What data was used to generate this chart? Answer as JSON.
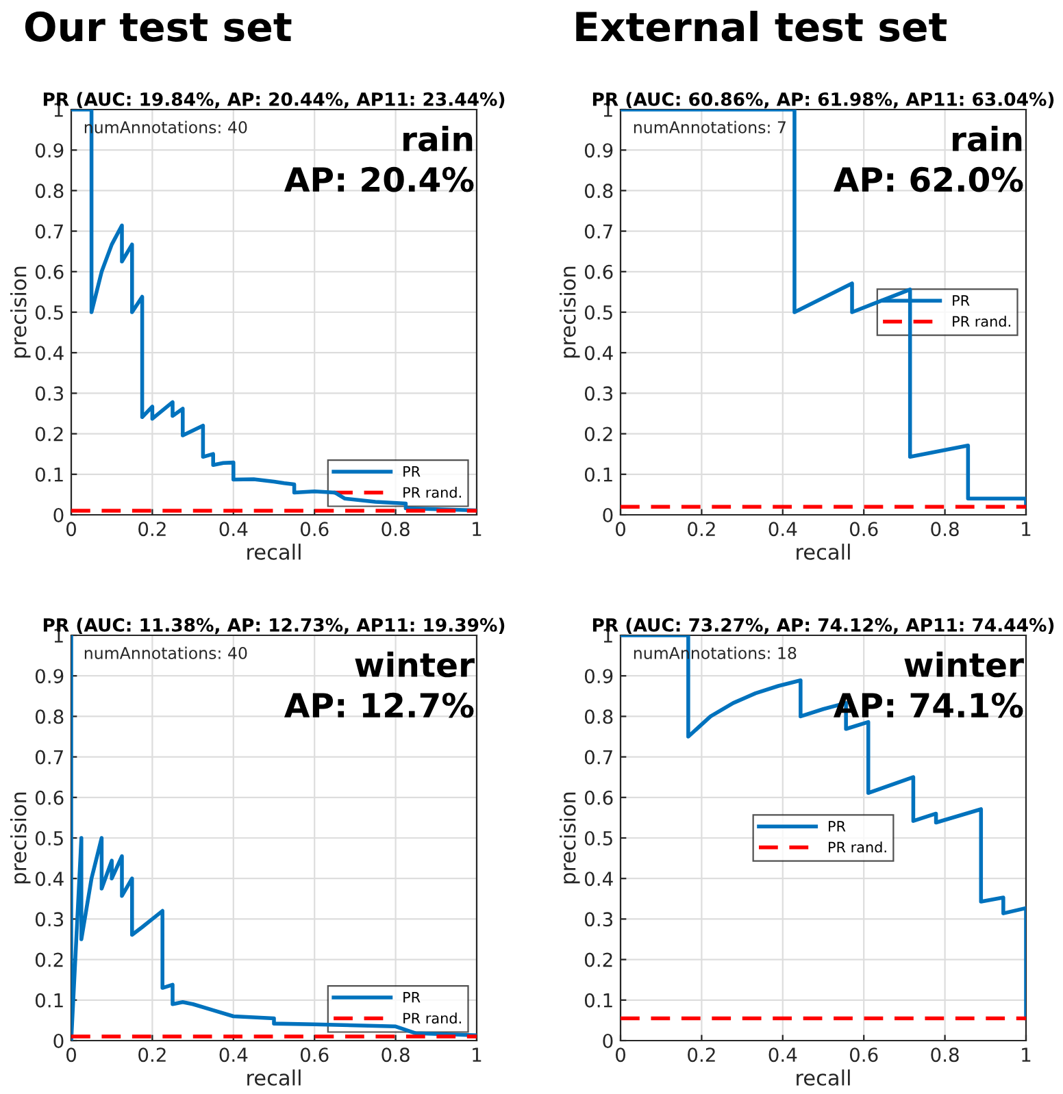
{
  "chart_data": [
    {
      "type": "line",
      "subtitle": "Our test set",
      "title": "PR (AUC: 19.84%, AP: 20.44%, AP11: 23.44%)",
      "xlabel": "recall",
      "ylabel": "precision",
      "annotations": [
        "numAnnotations: 40",
        "rain",
        "AP: 20.4%"
      ],
      "xlim": [
        0,
        1
      ],
      "ylim": [
        0,
        1
      ],
      "xticks": [
        0,
        0.2,
        0.4,
        0.6,
        0.8,
        1
      ],
      "yticks": [
        0,
        0.1,
        0.2,
        0.3,
        0.4,
        0.5,
        0.6,
        0.7,
        0.8,
        0.9,
        1
      ],
      "grid": true,
      "legend": "bottom right",
      "series": [
        {
          "name": "PR",
          "color": "#0072bd",
          "line_style": "solid",
          "x": [
            0,
            0.05,
            0.05,
            0.075,
            0.1,
            0.125,
            0.125,
            0.15,
            0.15,
            0.175,
            0.175,
            0.2,
            0.2,
            0.25,
            0.25,
            0.275,
            0.275,
            0.325,
            0.325,
            0.35,
            0.35,
            0.375,
            0.4,
            0.4,
            0.45,
            0.5,
            0.525,
            0.55,
            0.55,
            0.6,
            0.65,
            0.675,
            0.75,
            0.825,
            0.825,
            0.9,
            1
          ],
          "values": [
            1,
            1,
            0.5,
            0.6,
            0.667,
            0.714,
            0.625,
            0.667,
            0.5,
            0.538,
            0.241,
            0.267,
            0.237,
            0.278,
            0.244,
            0.262,
            0.196,
            0.22,
            0.143,
            0.15,
            0.123,
            0.128,
            0.129,
            0.087,
            0.088,
            0.082,
            0.078,
            0.075,
            0.055,
            0.058,
            0.055,
            0.04,
            0.032,
            0.028,
            0.016,
            0.014,
            0.011
          ]
        },
        {
          "name": "PR rand.",
          "color": "#ff0000",
          "line_style": "dashed",
          "x": [
            0,
            1
          ],
          "values": [
            0.01,
            0.01
          ]
        }
      ]
    },
    {
      "type": "line",
      "subtitle": "External test set",
      "title": "PR (AUC: 60.86%, AP: 61.98%, AP11: 63.04%)",
      "xlabel": "recall",
      "ylabel": "precision",
      "annotations": [
        "numAnnotations: 7",
        "rain",
        "AP: 62.0%"
      ],
      "xlim": [
        0,
        1
      ],
      "ylim": [
        0,
        1
      ],
      "xticks": [
        0,
        0.2,
        0.4,
        0.6,
        0.8,
        1
      ],
      "yticks": [
        0,
        0.1,
        0.2,
        0.3,
        0.4,
        0.5,
        0.6,
        0.7,
        0.8,
        0.9,
        1
      ],
      "grid": true,
      "legend": "right",
      "series": [
        {
          "name": "PR",
          "color": "#0072bd",
          "line_style": "solid",
          "x": [
            0,
            0.429,
            0.429,
            0.571,
            0.571,
            0.714,
            0.714,
            0.857,
            0.857,
            1,
            1
          ],
          "values": [
            1,
            1,
            0.5,
            0.571,
            0.5,
            0.556,
            0.143,
            0.171,
            0.04,
            0.04,
            0.028
          ]
        },
        {
          "name": "PR rand.",
          "color": "#ff0000",
          "line_style": "dashed",
          "x": [
            0,
            1
          ],
          "values": [
            0.02,
            0.02
          ]
        }
      ]
    },
    {
      "type": "line",
      "title": "PR (AUC: 11.38%, AP: 12.73%, AP11: 19.39%)",
      "xlabel": "recall",
      "ylabel": "precision",
      "annotations": [
        "numAnnotations: 40",
        "winter",
        "AP: 12.7%"
      ],
      "xlim": [
        0,
        1
      ],
      "ylim": [
        0,
        1
      ],
      "xticks": [
        0,
        0.2,
        0.4,
        0.6,
        0.8,
        1
      ],
      "yticks": [
        0,
        0.1,
        0.2,
        0.3,
        0.4,
        0.5,
        0.6,
        0.7,
        0.8,
        0.9,
        1
      ],
      "grid": true,
      "legend": "bottom right",
      "series": [
        {
          "name": "PR",
          "color": "#0072bd",
          "line_style": "solid",
          "x": [
            0,
            0,
            0.025,
            0.025,
            0.05,
            0.075,
            0.075,
            0.1,
            0.1,
            0.125,
            0.125,
            0.15,
            0.15,
            0.175,
            0.2,
            0.225,
            0.225,
            0.25,
            0.25,
            0.275,
            0.3,
            0.35,
            0.4,
            0.5,
            0.5,
            0.6,
            0.8,
            0.85,
            1
          ],
          "values": [
            1,
            0,
            0.5,
            0.25,
            0.4,
            0.5,
            0.375,
            0.444,
            0.4,
            0.455,
            0.357,
            0.4,
            0.261,
            0.28,
            0.3,
            0.32,
            0.13,
            0.138,
            0.09,
            0.095,
            0.09,
            0.075,
            0.06,
            0.055,
            0.042,
            0.04,
            0.035,
            0.018,
            0.013
          ]
        },
        {
          "name": "PR rand.",
          "color": "#ff0000",
          "line_style": "dashed",
          "x": [
            0,
            1
          ],
          "values": [
            0.01,
            0.01
          ]
        }
      ]
    },
    {
      "type": "line",
      "title": "PR (AUC: 73.27%, AP: 74.12%, AP11: 74.44%)",
      "xlabel": "recall",
      "ylabel": "precision",
      "annotations": [
        "numAnnotations: 18",
        "winter",
        "AP: 74.1%"
      ],
      "xlim": [
        0,
        1
      ],
      "ylim": [
        0,
        1
      ],
      "xticks": [
        0,
        0.2,
        0.4,
        0.6,
        0.8,
        1
      ],
      "yticks": [
        0,
        0.1,
        0.2,
        0.3,
        0.4,
        0.5,
        0.6,
        0.7,
        0.8,
        0.9,
        1
      ],
      "grid": true,
      "legend": "center",
      "series": [
        {
          "name": "PR",
          "color": "#0072bd",
          "line_style": "solid",
          "x": [
            0,
            0.167,
            0.167,
            0.222,
            0.278,
            0.333,
            0.389,
            0.444,
            0.444,
            0.5,
            0.556,
            0.556,
            0.611,
            0.611,
            0.722,
            0.722,
            0.778,
            0.778,
            0.889,
            0.889,
            0.944,
            0.944,
            1,
            1
          ],
          "values": [
            1,
            1,
            0.75,
            0.8,
            0.833,
            0.857,
            0.875,
            0.889,
            0.8,
            0.818,
            0.833,
            0.769,
            0.786,
            0.611,
            0.65,
            0.542,
            0.56,
            0.538,
            0.571,
            0.343,
            0.353,
            0.314,
            0.327,
            0.055
          ]
        },
        {
          "name": "PR rand.",
          "color": "#ff0000",
          "line_style": "dashed",
          "x": [
            0,
            1
          ],
          "values": [
            0.055,
            0.055
          ]
        }
      ]
    }
  ]
}
